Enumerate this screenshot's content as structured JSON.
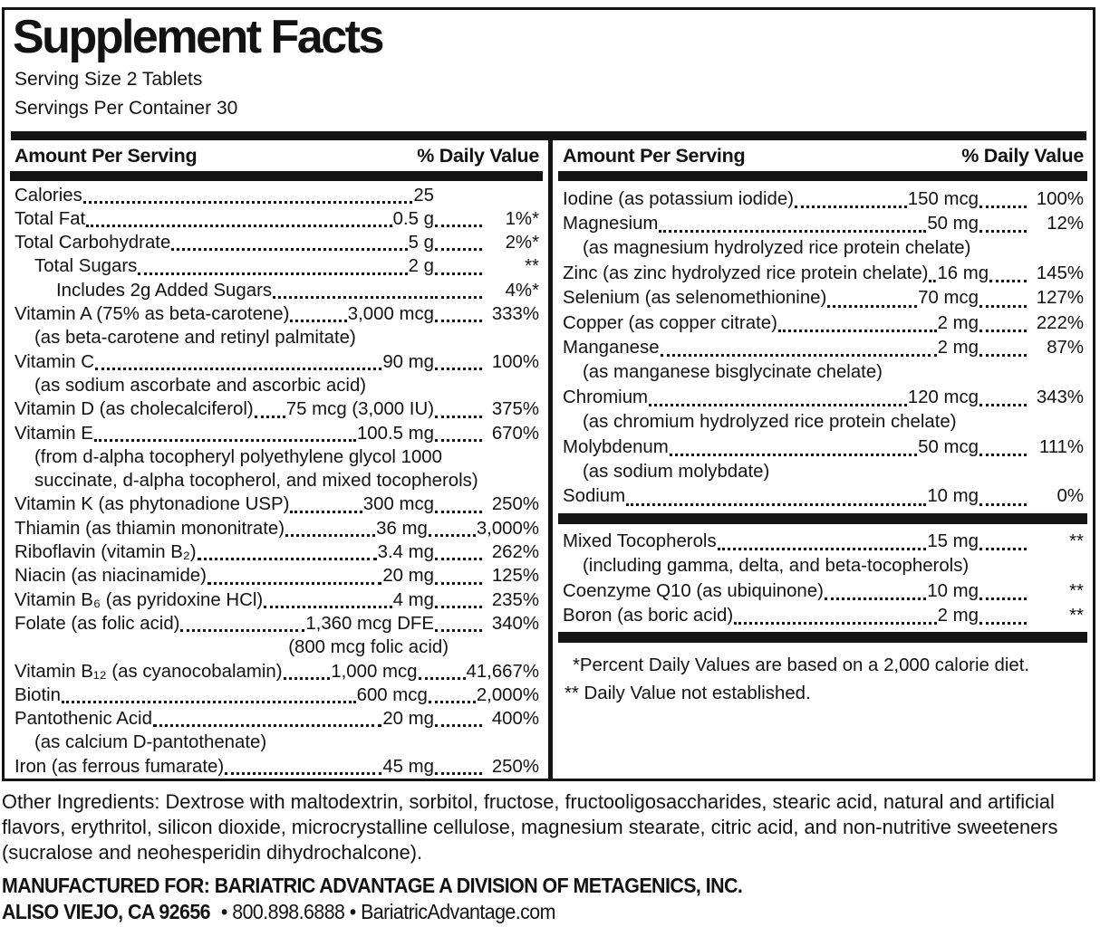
{
  "colors": {
    "ink": "#141414",
    "background": "#ffffff"
  },
  "header": {
    "title": "Supplement Facts",
    "serving_size": "Serving Size 2 Tablets",
    "servings_per_container": "Servings Per Container 30"
  },
  "columns": {
    "amount_header": "Amount Per Serving",
    "dv_header": "% Daily Value",
    "left": {
      "rows": [
        {
          "name": "Calories",
          "amount": "25",
          "dv": ""
        },
        {
          "name": "Total Fat",
          "amount": "0.5 g",
          "dv": "1%*"
        },
        {
          "name": "Total Carbohydrate",
          "amount": "5 g",
          "dv": "2%*"
        },
        {
          "name": "Total Sugars",
          "amount": "2 g",
          "dv": "**",
          "indent": 1
        },
        {
          "name": "Includes 2g Added Sugars",
          "amount": "",
          "dv": "4%*",
          "indent": 2
        },
        {
          "name": "Vitamin A (75% as beta-carotene)",
          "amount": "3,000 mcg",
          "dv": "333%",
          "subs": [
            {
              "text": "(as beta-carotene and retinyl palmitate)"
            }
          ]
        },
        {
          "name": "Vitamin C",
          "amount": "90 mg",
          "dv": "100%",
          "subs": [
            {
              "text": "(as sodium ascorbate and ascorbic acid)"
            }
          ]
        },
        {
          "name": "Vitamin D (as cholecalciferol)",
          "amount": "75 mcg (3,000 IU)",
          "dv": "375%"
        },
        {
          "name": "Vitamin E",
          "amount": "100.5 mg",
          "dv": "670%",
          "subs": [
            {
              "text": "(from d-alpha tocopheryl polyethylene glycol 1000"
            },
            {
              "text": "succinate, d-alpha tocopherol, and mixed tocopherols)"
            }
          ]
        },
        {
          "name": "Vitamin K (as phytonadione USP)",
          "amount": "300 mcg",
          "dv": "250%"
        },
        {
          "name": "Thiamin (as thiamin mononitrate)",
          "amount": "36 mg",
          "dv": "3,000%"
        },
        {
          "name": "Riboflavin (vitamin B₂)",
          "amount": "3.4 mg",
          "dv": "262%"
        },
        {
          "name": "Niacin (as niacinamide)",
          "amount": "20 mg",
          "dv": "125%"
        },
        {
          "name": "Vitamin B₆ (as pyridoxine HCl)",
          "amount": "4 mg",
          "dv": "235%"
        },
        {
          "name": "Folate (as folic acid)",
          "amount": "1,360 mcg DFE",
          "dv": "340%",
          "subs": [
            {
              "text": "(800 mcg folic acid)",
              "style": "right"
            }
          ]
        },
        {
          "name": "Vitamin B₁₂ (as cyanocobalamin)",
          "amount": "1,000 mcg",
          "dv": "41,667%"
        },
        {
          "name": "Biotin",
          "amount": "600 mcg",
          "dv": "2,000%"
        },
        {
          "name": "Pantothenic Acid",
          "amount": "20 mg",
          "dv": "400%",
          "subs": [
            {
              "text": "(as calcium D-pantothenate)"
            }
          ]
        },
        {
          "name": "Iron (as ferrous fumarate)",
          "amount": "45 mg",
          "dv": "250%"
        }
      ]
    },
    "right": {
      "rows": [
        {
          "name": "Iodine (as potassium iodide)",
          "amount": "150 mcg",
          "dv": "100%"
        },
        {
          "name": "Magnesium",
          "amount": "50 mg",
          "dv": "12%",
          "subs": [
            {
              "text": "(as magnesium hydrolyzed rice protein chelate)"
            }
          ]
        },
        {
          "name": "Zinc (as zinc hydrolyzed rice protein chelate)",
          "amount": "16 mg",
          "dv": "145%"
        },
        {
          "name": "Selenium (as selenomethionine)",
          "amount": "70 mcg",
          "dv": "127%"
        },
        {
          "name": "Copper (as copper citrate)",
          "amount": "2 mg",
          "dv": "222%"
        },
        {
          "name": "Manganese",
          "amount": "2 mg",
          "dv": "87%",
          "subs": [
            {
              "text": "(as manganese bisglycinate chelate)"
            }
          ]
        },
        {
          "name": "Chromium",
          "amount": "120 mcg",
          "dv": "343%",
          "subs": [
            {
              "text": "(as chromium hydrolyzed rice protein chelate)"
            }
          ]
        },
        {
          "name": "Molybdenum",
          "amount": "50 mcg",
          "dv": "111%",
          "subs": [
            {
              "text": "(as sodium molybdate)"
            }
          ]
        },
        {
          "name": "Sodium",
          "amount": "10 mg",
          "dv": "0%"
        }
      ],
      "extra_rows": [
        {
          "name": "Mixed Tocopherols",
          "amount": "15 mg",
          "dv": "**",
          "subs": [
            {
              "text": "(including gamma, delta, and beta-tocopherols)"
            }
          ]
        },
        {
          "name": "Coenzyme Q10 (as ubiquinone)",
          "amount": "10 mg",
          "dv": "**"
        },
        {
          "name": "Boron (as boric acid)",
          "amount": "2 mg",
          "dv": "**"
        }
      ],
      "footnotes": [
        "*Percent Daily Values are based on a 2,000 calorie diet.",
        "** Daily Value not established."
      ]
    }
  },
  "footer": {
    "other_ingredients": "Other Ingredients: Dextrose with maltodextrin, sorbitol, fructose, fructooligosaccharides, stearic acid, natural and artificial flavors, erythritol, silicon dioxide, microcrystalline cellulose, magnesium stearate, citric acid, and non-nutritive sweeteners (sucralose and neohesperidin dihydrochalcone).",
    "manufactured_for": "MANUFACTURED FOR: BARIATRIC ADVANTAGE A DIVISION OF METAGENICS, INC.",
    "address_bold": "ALISO VIEJO, CA 92656",
    "address_rest": "• 800.898.6888 • BariatricAdvantage.com"
  }
}
